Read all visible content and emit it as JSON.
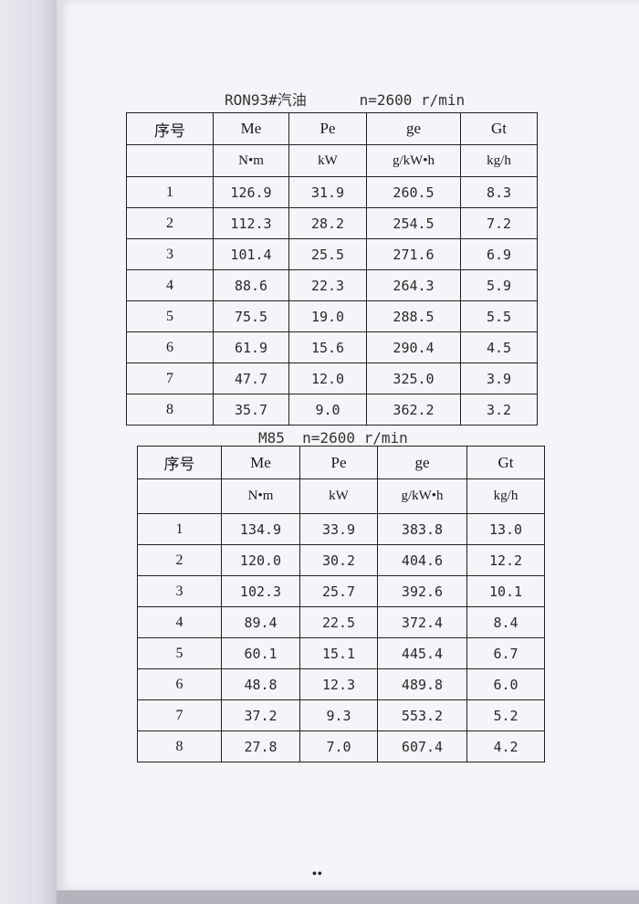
{
  "table1": {
    "caption": "RON93#汽油      n=2600 r/min",
    "headers": [
      "序号",
      "Me",
      "Pe",
      "ge",
      "Gt"
    ],
    "units": [
      "",
      "N•m",
      "kW",
      "g/kW•h",
      "kg/h"
    ],
    "rows": [
      [
        "1",
        "126.9",
        "31.9",
        "260.5",
        "8.3"
      ],
      [
        "2",
        "112.3",
        "28.2",
        "254.5",
        "7.2"
      ],
      [
        "3",
        "101.4",
        "25.5",
        "271.6",
        "6.9"
      ],
      [
        "4",
        "88.6",
        "22.3",
        "264.3",
        "5.9"
      ],
      [
        "5",
        "75.5",
        "19.0",
        "288.5",
        "5.5"
      ],
      [
        "6",
        "61.9",
        "15.6",
        "290.4",
        "4.5"
      ],
      [
        "7",
        "47.7",
        "12.0",
        "325.0",
        "3.9"
      ],
      [
        "8",
        "35.7",
        "9.0",
        "362.2",
        "3.2"
      ]
    ]
  },
  "table2": {
    "caption": "M85  n=2600 r/min",
    "headers": [
      "序号",
      "Me",
      "Pe",
      "ge",
      "Gt"
    ],
    "units": [
      "",
      "N•m",
      "kW",
      "g/kW•h",
      "kg/h"
    ],
    "rows": [
      [
        "1",
        "134.9",
        "33.9",
        "383.8",
        "13.0"
      ],
      [
        "2",
        "120.0",
        "30.2",
        "404.6",
        "12.2"
      ],
      [
        "3",
        "102.3",
        "25.7",
        "392.6",
        "10.1"
      ],
      [
        "4",
        "89.4",
        "22.5",
        "372.4",
        "8.4"
      ],
      [
        "5",
        "60.1",
        "15.1",
        "445.4",
        "6.7"
      ],
      [
        "6",
        "48.8",
        "12.3",
        "489.8",
        "6.0"
      ],
      [
        "7",
        "37.2",
        "9.3",
        "553.2",
        "5.2"
      ],
      [
        "8",
        "27.8",
        "7.0",
        "607.4",
        "4.2"
      ]
    ]
  },
  "footer": {
    "page_mark": "••"
  }
}
